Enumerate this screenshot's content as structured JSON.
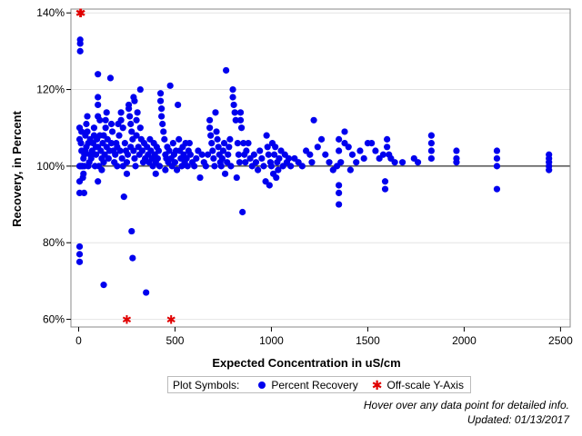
{
  "chart_data": {
    "type": "scatter",
    "xlabel": "Expected Concentration in uS/cm",
    "ylabel": "Recovery, in Percent",
    "xlim": [
      -40,
      2550
    ],
    "ylim": [
      58,
      141
    ],
    "x_ticks": [
      {
        "value": 0,
        "label": "0"
      },
      {
        "value": 500,
        "label": "500"
      },
      {
        "value": 1000,
        "label": "1000"
      },
      {
        "value": 1500,
        "label": "1500"
      },
      {
        "value": 2000,
        "label": "2000"
      },
      {
        "value": 2500,
        "label": "2500"
      }
    ],
    "y_ticks": [
      {
        "value": 60,
        "label": "60%"
      },
      {
        "value": 80,
        "label": "80%"
      },
      {
        "value": 100,
        "label": "100%"
      },
      {
        "value": 120,
        "label": "120%"
      },
      {
        "value": 140,
        "label": "140%"
      }
    ],
    "reference_line_y": 100,
    "grid": "horizontal",
    "series": [
      {
        "name": "Percent Recovery",
        "marker": "circle",
        "color": "#0000ee",
        "points": [
          [
            5,
            100
          ],
          [
            5,
            110
          ],
          [
            5,
            107
          ],
          [
            5,
            96
          ],
          [
            5,
            93
          ],
          [
            5,
            79
          ],
          [
            5,
            77
          ],
          [
            5,
            75
          ],
          [
            8,
            133
          ],
          [
            8,
            132
          ],
          [
            8,
            130
          ],
          [
            10,
            100
          ],
          [
            12,
            106
          ],
          [
            15,
            109
          ],
          [
            15,
            104
          ],
          [
            18,
            100
          ],
          [
            20,
            100
          ],
          [
            22,
            97
          ],
          [
            25,
            98
          ],
          [
            25,
            102
          ],
          [
            28,
            93
          ],
          [
            30,
            100
          ],
          [
            30,
            103
          ],
          [
            35,
            108
          ],
          [
            35,
            104
          ],
          [
            40,
            111
          ],
          [
            40,
            105
          ],
          [
            45,
            113
          ],
          [
            45,
            109
          ],
          [
            50,
            100
          ],
          [
            50,
            106
          ],
          [
            55,
            101
          ],
          [
            60,
            103
          ],
          [
            60,
            107
          ],
          [
            65,
            102
          ],
          [
            70,
            104
          ],
          [
            75,
            106
          ],
          [
            80,
            110
          ],
          [
            80,
            108
          ],
          [
            85,
            100
          ],
          [
            90,
            103
          ],
          [
            90,
            105
          ],
          [
            95,
            107
          ],
          [
            100,
            124
          ],
          [
            100,
            118
          ],
          [
            100,
            116
          ],
          [
            100,
            113
          ],
          [
            100,
            105
          ],
          [
            100,
            96
          ],
          [
            105,
            100
          ],
          [
            110,
            112
          ],
          [
            110,
            108
          ],
          [
            115,
            104
          ],
          [
            120,
            99
          ],
          [
            120,
            102
          ],
          [
            125,
            106
          ],
          [
            130,
            101
          ],
          [
            130,
            108
          ],
          [
            130,
            69
          ],
          [
            135,
            103
          ],
          [
            140,
            112
          ],
          [
            140,
            110
          ],
          [
            145,
            114
          ],
          [
            145,
            105
          ],
          [
            150,
            107
          ],
          [
            155,
            102
          ],
          [
            160,
            104
          ],
          [
            165,
            123
          ],
          [
            170,
            111
          ],
          [
            170,
            106
          ],
          [
            175,
            109
          ],
          [
            180,
            104
          ],
          [
            185,
            101
          ],
          [
            190,
            103
          ],
          [
            195,
            106
          ],
          [
            200,
            100
          ],
          [
            200,
            105
          ],
          [
            205,
            111
          ],
          [
            210,
            108
          ],
          [
            215,
            104
          ],
          [
            220,
            112
          ],
          [
            220,
            114
          ],
          [
            225,
            102
          ],
          [
            230,
            110
          ],
          [
            230,
            100
          ],
          [
            235,
            92
          ],
          [
            240,
            106
          ],
          [
            245,
            104
          ],
          [
            250,
            98
          ],
          [
            250,
            101
          ],
          [
            255,
            103
          ],
          [
            260,
            116
          ],
          [
            260,
            115
          ],
          [
            265,
            113
          ],
          [
            270,
            111
          ],
          [
            270,
            105
          ],
          [
            275,
            109
          ],
          [
            275,
            83
          ],
          [
            280,
            107
          ],
          [
            280,
            76
          ],
          [
            285,
            118
          ],
          [
            285,
            104
          ],
          [
            290,
            117
          ],
          [
            290,
            102
          ],
          [
            295,
            100
          ],
          [
            300,
            112
          ],
          [
            300,
            108
          ],
          [
            305,
            114
          ],
          [
            310,
            105
          ],
          [
            315,
            103
          ],
          [
            320,
            120
          ],
          [
            320,
            110
          ],
          [
            325,
            107
          ],
          [
            330,
            104
          ],
          [
            335,
            101
          ],
          [
            340,
            106
          ],
          [
            345,
            102
          ],
          [
            350,
            67
          ],
          [
            355,
            105
          ],
          [
            360,
            103
          ],
          [
            365,
            101
          ],
          [
            370,
            107
          ],
          [
            375,
            104
          ],
          [
            380,
            102
          ],
          [
            385,
            100
          ],
          [
            390,
            106
          ],
          [
            395,
            103
          ],
          [
            400,
            98
          ],
          [
            400,
            101
          ],
          [
            405,
            105
          ],
          [
            410,
            102
          ],
          [
            415,
            104
          ],
          [
            420,
            100
          ],
          [
            425,
            119
          ],
          [
            425,
            117
          ],
          [
            430,
            115
          ],
          [
            430,
            113
          ],
          [
            435,
            111
          ],
          [
            440,
            109
          ],
          [
            445,
            107
          ],
          [
            450,
            99
          ],
          [
            450,
            103
          ],
          [
            455,
            102
          ],
          [
            460,
            105
          ],
          [
            465,
            101
          ],
          [
            470,
            104
          ],
          [
            475,
            121
          ],
          [
            480,
            102
          ],
          [
            485,
            100
          ],
          [
            490,
            106
          ],
          [
            495,
            103
          ],
          [
            500,
            101
          ],
          [
            505,
            104
          ],
          [
            510,
            99
          ],
          [
            515,
            116
          ],
          [
            520,
            107
          ],
          [
            525,
            104
          ],
          [
            530,
            102
          ],
          [
            535,
            100
          ],
          [
            540,
            105
          ],
          [
            545,
            103
          ],
          [
            550,
            101
          ],
          [
            555,
            106
          ],
          [
            560,
            102
          ],
          [
            565,
            100
          ],
          [
            570,
            104
          ],
          [
            575,
            106
          ],
          [
            580,
            103
          ],
          [
            590,
            101
          ],
          [
            600,
            100
          ],
          [
            610,
            102
          ],
          [
            620,
            104
          ],
          [
            630,
            97
          ],
          [
            640,
            103
          ],
          [
            650,
            101
          ],
          [
            660,
            100
          ],
          [
            670,
            103
          ],
          [
            680,
            112
          ],
          [
            680,
            110
          ],
          [
            685,
            108
          ],
          [
            690,
            106
          ],
          [
            695,
            104
          ],
          [
            700,
            102
          ],
          [
            705,
            100
          ],
          [
            710,
            114
          ],
          [
            715,
            109
          ],
          [
            720,
            107
          ],
          [
            725,
            105
          ],
          [
            730,
            103
          ],
          [
            735,
            101
          ],
          [
            740,
            100
          ],
          [
            745,
            102
          ],
          [
            750,
            104
          ],
          [
            755,
            106
          ],
          [
            760,
            98
          ],
          [
            765,
            125
          ],
          [
            770,
            101
          ],
          [
            775,
            103
          ],
          [
            780,
            105
          ],
          [
            785,
            107
          ],
          [
            790,
            100
          ],
          [
            800,
            120
          ],
          [
            800,
            118
          ],
          [
            805,
            116
          ],
          [
            810,
            114
          ],
          [
            815,
            112
          ],
          [
            820,
            97
          ],
          [
            825,
            106
          ],
          [
            830,
            103
          ],
          [
            835,
            101
          ],
          [
            840,
            114
          ],
          [
            840,
            112
          ],
          [
            845,
            110
          ],
          [
            850,
            88
          ],
          [
            855,
            106
          ],
          [
            860,
            103
          ],
          [
            865,
            101
          ],
          [
            870,
            104
          ],
          [
            880,
            106
          ],
          [
            890,
            102
          ],
          [
            900,
            100
          ],
          [
            910,
            103
          ],
          [
            920,
            101
          ],
          [
            930,
            99
          ],
          [
            940,
            104
          ],
          [
            950,
            102
          ],
          [
            960,
            100
          ],
          [
            970,
            96
          ],
          [
            975,
            108
          ],
          [
            980,
            105
          ],
          [
            985,
            103
          ],
          [
            990,
            95
          ],
          [
            995,
            101
          ],
          [
            1000,
            100
          ],
          [
            1005,
            106
          ],
          [
            1010,
            98
          ],
          [
            1015,
            103
          ],
          [
            1020,
            105
          ],
          [
            1025,
            97
          ],
          [
            1030,
            101
          ],
          [
            1035,
            99
          ],
          [
            1040,
            102
          ],
          [
            1050,
            104
          ],
          [
            1060,
            100
          ],
          [
            1070,
            103
          ],
          [
            1080,
            101
          ],
          [
            1090,
            102
          ],
          [
            1100,
            100
          ],
          [
            1120,
            102
          ],
          [
            1140,
            101
          ],
          [
            1160,
            100
          ],
          [
            1180,
            104
          ],
          [
            1200,
            103
          ],
          [
            1210,
            101
          ],
          [
            1220,
            112
          ],
          [
            1240,
            105
          ],
          [
            1260,
            107
          ],
          [
            1280,
            103
          ],
          [
            1300,
            101
          ],
          [
            1320,
            99
          ],
          [
            1340,
            100
          ],
          [
            1350,
            107
          ],
          [
            1350,
            104
          ],
          [
            1350,
            95
          ],
          [
            1350,
            93
          ],
          [
            1350,
            90
          ],
          [
            1360,
            101
          ],
          [
            1380,
            109
          ],
          [
            1380,
            106
          ],
          [
            1400,
            105
          ],
          [
            1410,
            99
          ],
          [
            1420,
            103
          ],
          [
            1440,
            101
          ],
          [
            1460,
            104
          ],
          [
            1480,
            102
          ],
          [
            1500,
            106
          ],
          [
            1520,
            106
          ],
          [
            1540,
            104
          ],
          [
            1560,
            102
          ],
          [
            1580,
            103
          ],
          [
            1590,
            96
          ],
          [
            1590,
            94
          ],
          [
            1600,
            107
          ],
          [
            1600,
            105
          ],
          [
            1610,
            103
          ],
          [
            1620,
            102
          ],
          [
            1640,
            101
          ],
          [
            1680,
            101
          ],
          [
            1740,
            102
          ],
          [
            1760,
            101
          ],
          [
            1830,
            108
          ],
          [
            1830,
            106
          ],
          [
            1830,
            104
          ],
          [
            1830,
            102
          ],
          [
            1960,
            104
          ],
          [
            1960,
            102
          ],
          [
            1960,
            101
          ],
          [
            2170,
            104
          ],
          [
            2170,
            102
          ],
          [
            2170,
            100
          ],
          [
            2170,
            94
          ],
          [
            2440,
            103
          ],
          [
            2440,
            102
          ],
          [
            2440,
            101
          ],
          [
            2440,
            100
          ],
          [
            2440,
            99
          ]
        ]
      },
      {
        "name": "Off-scale Y-Axis",
        "marker": "star",
        "color": "#e00000",
        "points": [
          [
            8,
            140
          ],
          [
            12,
            140
          ],
          [
            250,
            60
          ],
          [
            480,
            60
          ]
        ]
      }
    ],
    "legend": {
      "title": "Plot Symbols:",
      "placement": "bottom"
    }
  },
  "notes": {
    "hover": "Hover over any data point for detailed info.",
    "updated": "Updated: 01/13/2017"
  }
}
